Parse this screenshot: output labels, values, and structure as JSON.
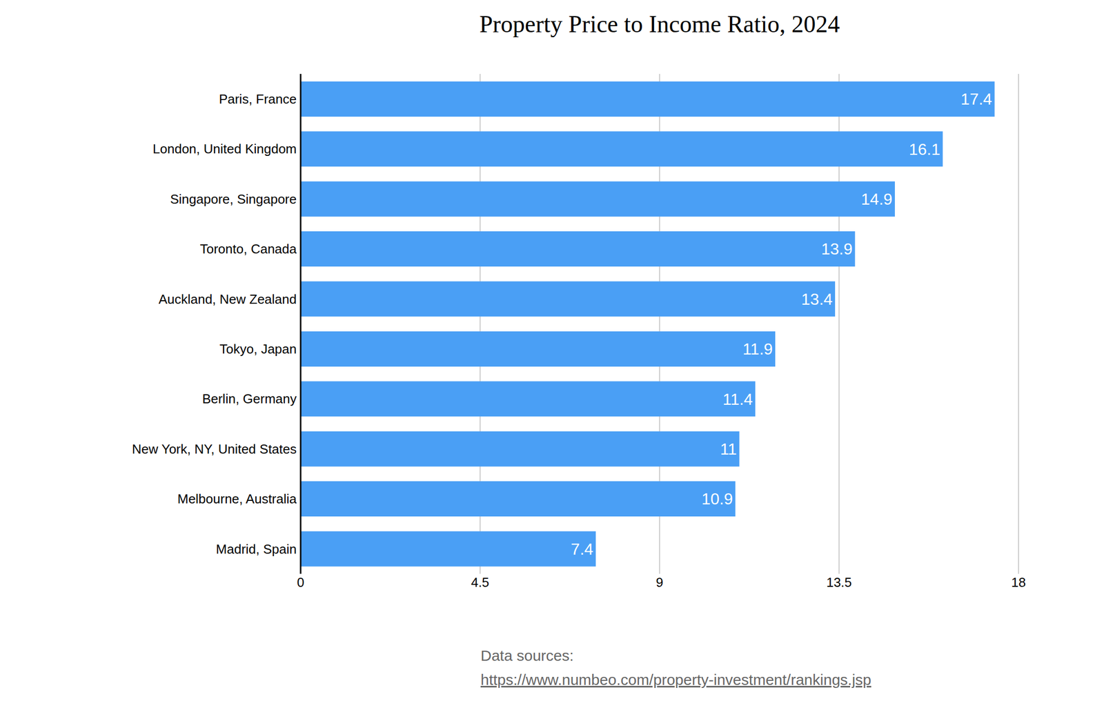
{
  "chart_data": {
    "type": "bar",
    "title": "Property Price to Income Ratio, 2024",
    "orientation": "horizontal",
    "categories": [
      "Paris, France",
      "London, United Kingdom",
      "Singapore, Singapore",
      "Toronto, Canada",
      "Auckland, New Zealand",
      "Tokyo, Japan",
      "Berlin, Germany",
      "New York, NY, United States",
      "Melbourne, Australia",
      "Madrid, Spain"
    ],
    "values": [
      17.4,
      16.1,
      14.9,
      13.9,
      13.4,
      11.9,
      11.4,
      11,
      10.9,
      7.4
    ],
    "color": "#4a9ff5",
    "xlim": [
      0,
      18
    ],
    "xticks": [
      0,
      4.5,
      9,
      13.5,
      18
    ],
    "grid": true,
    "data_labels": true,
    "annotations": [
      "Data sources:",
      "https://www.numbeo.com/property-investment/rankings.jsp"
    ]
  }
}
